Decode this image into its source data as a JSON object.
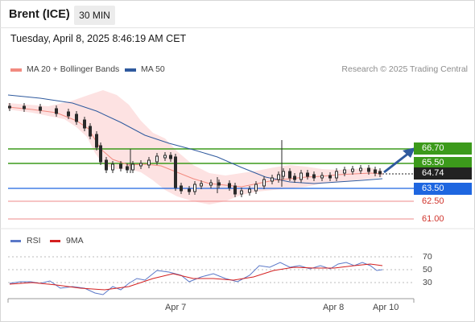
{
  "header": {
    "instrument": "Brent (ICE)",
    "timeframe": "30 MIN"
  },
  "timestamp": "Tuesday, April 8, 2025 8:46:19 AM CET",
  "legend": {
    "ma20": {
      "label": "MA 20 + Bollinger Bands",
      "color": "#f28a80"
    },
    "ma50": {
      "label": "MA 50",
      "color": "#2f5a9e"
    }
  },
  "copyright": "Research © 2025 Trading Central",
  "levels": {
    "r2": "66.70",
    "r1": "65.50",
    "last": "64.74",
    "s1": "63.50",
    "s2": "62.50",
    "s3": "61.00"
  },
  "rsi": {
    "legend_rsi": "RSI",
    "legend_9ma": "9MA",
    "rsi_color": "#5b78c8",
    "ma_color": "#d42020",
    "ticks": [
      "70",
      "50",
      "30"
    ]
  },
  "xaxis": {
    "labels": [
      "Apr 7",
      "Apr 8",
      "Apr 10"
    ]
  },
  "colors": {
    "resistance": "#3c9a1b",
    "support": "#1e66e0",
    "bb_fill": "#fde2e2",
    "up": "#2a2a2a"
  }
}
